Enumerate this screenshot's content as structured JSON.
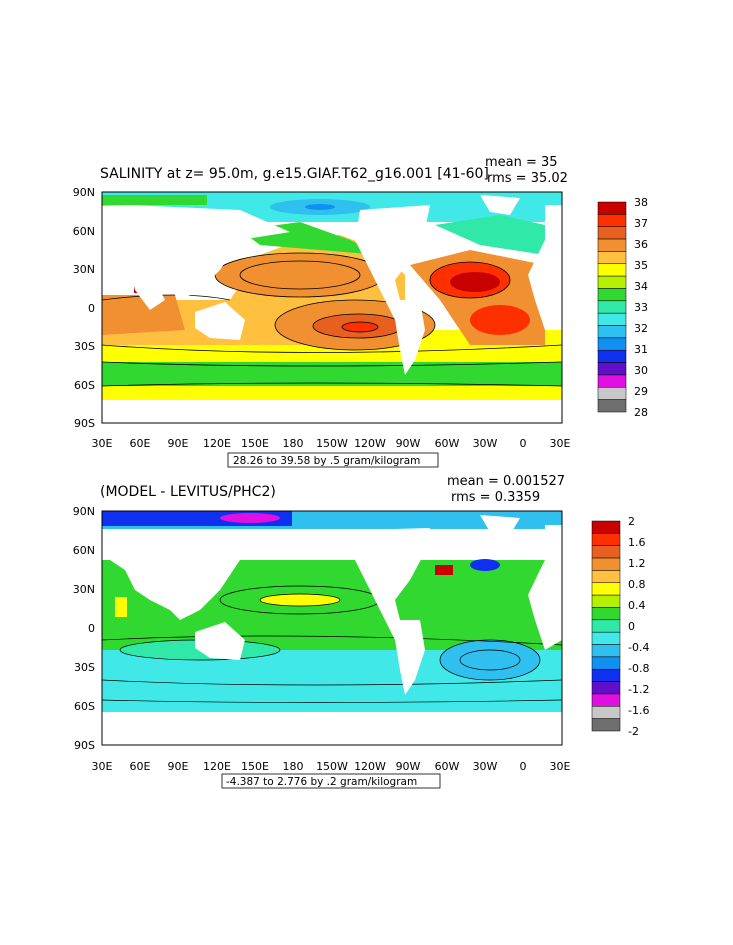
{
  "panels": [
    {
      "title": "SALINITY at z=  95.0m, g.e15.GIAF.T62_g16.001 [41-60]",
      "mean_text": "mean = 35",
      "rms_text": "rms = 35.02",
      "range_text": "28.26 to 39.58 by .5 gram/kilogram",
      "colorbar_labels": [
        "38",
        "37",
        "36",
        "35",
        "34",
        "33",
        "32",
        "31",
        "30",
        "29",
        "28"
      ],
      "colors": [
        "#c80000",
        "#ff3000",
        "#e86020",
        "#f09030",
        "#ffc040",
        "#ffff00",
        "#b4f000",
        "#30d830",
        "#30e8a8",
        "#40e8e8",
        "#30c0f0",
        "#1090f0",
        "#1030f0",
        "#6010c8",
        "#e010e0",
        "#c8c8c8",
        "#6e6e6e"
      ],
      "ocean_colors": {
        "polar": "#30e8a8",
        "south": "#30d830",
        "subtrop": "#ffc040",
        "mid": "#f09030",
        "center": "#e86020",
        "core": "#ff3000",
        "max": "#c80000",
        "arctic": "#40e8e8"
      }
    },
    {
      "title": "(MODEL - LEVITUS/PHC2)",
      "mean_text": "mean = 0.001527",
      "rms_text": "rms = 0.3359",
      "range_text": "-4.387 to 2.776 by .2 gram/kilogram",
      "colorbar_labels": [
        "2",
        "1.6",
        "1.2",
        "0.8",
        "0.4",
        "0",
        "-0.4",
        "-0.8",
        "-1.2",
        "-1.6",
        "-2"
      ],
      "colors": [
        "#c80000",
        "#ff3000",
        "#e86020",
        "#f09030",
        "#ffc040",
        "#ffff00",
        "#b4f000",
        "#30d830",
        "#30e8a8",
        "#40e8e8",
        "#30c0f0",
        "#1090f0",
        "#1030f0",
        "#6010c8",
        "#e010e0",
        "#c8c8c8",
        "#6e6e6e"
      ],
      "ocean_colors": {
        "base": "#30e8a8",
        "green": "#30d830",
        "cyan": "#40e8e8",
        "yellow": "#ffff00",
        "blue": "#1090f0"
      }
    }
  ],
  "axes": {
    "x_labels": [
      "30E",
      "60E",
      "90E",
      "120E",
      "150E",
      "180",
      "150W",
      "120W",
      "90W",
      "60W",
      "30W",
      "0",
      "30E"
    ],
    "y_labels": [
      "90N",
      "60N",
      "30N",
      "0",
      "30S",
      "60S",
      "90S"
    ]
  }
}
